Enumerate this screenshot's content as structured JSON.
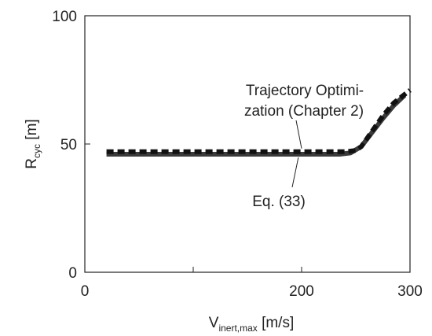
{
  "chart_data": {
    "type": "line",
    "xlabel_main": "V",
    "xlabel_sub": "inert,max",
    "xlabel_unit": " [m/s]",
    "ylabel_main": "R",
    "ylabel_sub": "cyc",
    "ylabel_unit": " [m]",
    "xlim": [
      0,
      300
    ],
    "ylim": [
      0,
      100
    ],
    "x_ticks": [
      0,
      100,
      200,
      300
    ],
    "x_tick_labels": [
      "0",
      "",
      "200",
      "300"
    ],
    "y_ticks": [
      0,
      50,
      100
    ],
    "y_tick_labels": [
      "0",
      "50",
      "100"
    ],
    "grid": false,
    "series": [
      {
        "label": "Eq. (33)",
        "style": "solid",
        "color": "#3a3a3a",
        "x": [
          20,
          40,
          80,
          120,
          160,
          200,
          235,
          245,
          255,
          265,
          275,
          285,
          295
        ],
        "y": [
          46,
          46,
          46,
          46,
          46,
          46,
          46,
          46.5,
          49,
          54.5,
          60,
          65,
          69
        ]
      },
      {
        "label": "Trajectory Optimi-\nzation (Chapter 2)",
        "style": "dashed",
        "color": "#111111",
        "x": [
          20,
          40,
          80,
          120,
          160,
          200,
          240,
          250,
          255,
          265,
          275,
          285,
          300
        ],
        "y": [
          47,
          47,
          47,
          47,
          47,
          47,
          47,
          47.5,
          49,
          55,
          61,
          66,
          71
        ]
      }
    ],
    "annotations": [
      {
        "text_line1": "Trajectory Optimi-",
        "text_line2": "zation (Chapter 2)"
      },
      {
        "text": "Eq. (33)"
      }
    ]
  }
}
